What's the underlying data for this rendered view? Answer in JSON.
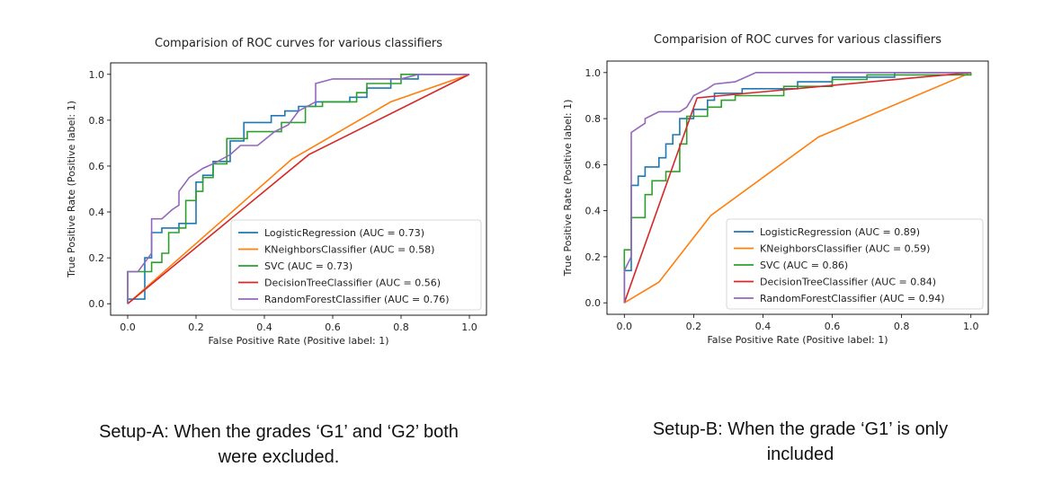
{
  "chart_data": [
    {
      "type": "line",
      "title": "Comparision of ROC curves for various classifiers",
      "xlabel": "False Positive Rate (Positive label: 1)",
      "ylabel": "True Positive Rate (Positive label: 1)",
      "xlim": [
        -0.05,
        1.05
      ],
      "ylim": [
        -0.05,
        1.05
      ],
      "xticks": [
        "0.0",
        "0.2",
        "0.4",
        "0.6",
        "0.8",
        "1.0"
      ],
      "yticks": [
        "0.0",
        "0.2",
        "0.4",
        "0.6",
        "0.8",
        "1.0"
      ],
      "grid": false,
      "legend_position": "lower-right",
      "series": [
        {
          "name": "LogisticRegression (AUC = 0.73)",
          "color": "#1f77b4",
          "step": true,
          "points": [
            [
              0,
              0
            ],
            [
              0,
              0.02
            ],
            [
              0.05,
              0.02
            ],
            [
              0.05,
              0.2
            ],
            [
              0.07,
              0.2
            ],
            [
              0.07,
              0.31
            ],
            [
              0.1,
              0.31
            ],
            [
              0.1,
              0.33
            ],
            [
              0.15,
              0.33
            ],
            [
              0.15,
              0.35
            ],
            [
              0.2,
              0.35
            ],
            [
              0.2,
              0.53
            ],
            [
              0.22,
              0.53
            ],
            [
              0.22,
              0.56
            ],
            [
              0.25,
              0.56
            ],
            [
              0.25,
              0.62
            ],
            [
              0.3,
              0.62
            ],
            [
              0.3,
              0.71
            ],
            [
              0.34,
              0.71
            ],
            [
              0.34,
              0.79
            ],
            [
              0.42,
              0.79
            ],
            [
              0.42,
              0.82
            ],
            [
              0.46,
              0.82
            ],
            [
              0.46,
              0.84
            ],
            [
              0.5,
              0.84
            ],
            [
              0.5,
              0.86
            ],
            [
              0.55,
              0.86
            ],
            [
              0.55,
              0.88
            ],
            [
              0.65,
              0.88
            ],
            [
              0.65,
              0.9
            ],
            [
              0.7,
              0.9
            ],
            [
              0.7,
              0.94
            ],
            [
              0.77,
              0.94
            ],
            [
              0.77,
              0.98
            ],
            [
              0.85,
              0.98
            ],
            [
              0.85,
              1.0
            ],
            [
              1.0,
              1.0
            ]
          ]
        },
        {
          "name": "KNeighborsClassifier (AUC = 0.58)",
          "color": "#ff7f0e",
          "step": false,
          "points": [
            [
              0,
              0
            ],
            [
              0.48,
              0.63
            ],
            [
              0.77,
              0.88
            ],
            [
              1.0,
              1.0
            ]
          ]
        },
        {
          "name": "SVC (AUC = 0.73)",
          "color": "#2ca02c",
          "step": true,
          "points": [
            [
              0,
              0
            ],
            [
              0,
              0.14
            ],
            [
              0.07,
              0.14
            ],
            [
              0.07,
              0.18
            ],
            [
              0.1,
              0.18
            ],
            [
              0.1,
              0.22
            ],
            [
              0.12,
              0.22
            ],
            [
              0.12,
              0.31
            ],
            [
              0.15,
              0.31
            ],
            [
              0.15,
              0.33
            ],
            [
              0.17,
              0.33
            ],
            [
              0.17,
              0.45
            ],
            [
              0.2,
              0.45
            ],
            [
              0.2,
              0.49
            ],
            [
              0.22,
              0.49
            ],
            [
              0.22,
              0.55
            ],
            [
              0.25,
              0.55
            ],
            [
              0.25,
              0.61
            ],
            [
              0.29,
              0.61
            ],
            [
              0.29,
              0.72
            ],
            [
              0.35,
              0.72
            ],
            [
              0.35,
              0.75
            ],
            [
              0.45,
              0.75
            ],
            [
              0.45,
              0.79
            ],
            [
              0.52,
              0.79
            ],
            [
              0.52,
              0.86
            ],
            [
              0.57,
              0.86
            ],
            [
              0.57,
              0.88
            ],
            [
              0.67,
              0.88
            ],
            [
              0.67,
              0.92
            ],
            [
              0.7,
              0.92
            ],
            [
              0.7,
              0.96
            ],
            [
              0.8,
              0.96
            ],
            [
              0.8,
              1.0
            ],
            [
              1.0,
              1.0
            ]
          ]
        },
        {
          "name": "DecisionTreeClassifier (AUC = 0.56)",
          "color": "#d62728",
          "step": false,
          "points": [
            [
              0,
              0
            ],
            [
              0.53,
              0.65
            ],
            [
              1.0,
              1.0
            ]
          ]
        },
        {
          "name": "RandomForestClassifier (AUC = 0.76)",
          "color": "#9467bd",
          "step": false,
          "points": [
            [
              0,
              0
            ],
            [
              0,
              0.14
            ],
            [
              0.03,
              0.14
            ],
            [
              0.05,
              0.18
            ],
            [
              0.07,
              0.22
            ],
            [
              0.07,
              0.37
            ],
            [
              0.1,
              0.37
            ],
            [
              0.13,
              0.41
            ],
            [
              0.15,
              0.43
            ],
            [
              0.15,
              0.49
            ],
            [
              0.18,
              0.55
            ],
            [
              0.22,
              0.59
            ],
            [
              0.25,
              0.61
            ],
            [
              0.3,
              0.65
            ],
            [
              0.33,
              0.69
            ],
            [
              0.38,
              0.69
            ],
            [
              0.43,
              0.75
            ],
            [
              0.47,
              0.78
            ],
            [
              0.5,
              0.84
            ],
            [
              0.55,
              0.88
            ],
            [
              0.55,
              0.96
            ],
            [
              0.6,
              0.98
            ],
            [
              0.8,
              0.98
            ],
            [
              0.85,
              1.0
            ],
            [
              1.0,
              1.0
            ]
          ]
        }
      ]
    },
    {
      "type": "line",
      "title": "Comparision of ROC curves for various classifiers",
      "xlabel": "False Positive Rate (Positive label: 1)",
      "ylabel": "True Positive Rate (Positive label: 1)",
      "xlim": [
        -0.05,
        1.05
      ],
      "ylim": [
        -0.05,
        1.05
      ],
      "xticks": [
        "0.0",
        "0.2",
        "0.4",
        "0.6",
        "0.8",
        "1.0"
      ],
      "yticks": [
        "0.0",
        "0.2",
        "0.4",
        "0.6",
        "0.8",
        "1.0"
      ],
      "grid": false,
      "legend_position": "lower-right",
      "series": [
        {
          "name": "LogisticRegression (AUC = 0.89)",
          "color": "#1f77b4",
          "step": true,
          "points": [
            [
              0,
              0
            ],
            [
              0,
              0.14
            ],
            [
              0.02,
              0.14
            ],
            [
              0.02,
              0.51
            ],
            [
              0.04,
              0.51
            ],
            [
              0.04,
              0.55
            ],
            [
              0.06,
              0.55
            ],
            [
              0.06,
              0.59
            ],
            [
              0.1,
              0.59
            ],
            [
              0.1,
              0.63
            ],
            [
              0.12,
              0.63
            ],
            [
              0.12,
              0.69
            ],
            [
              0.14,
              0.69
            ],
            [
              0.14,
              0.73
            ],
            [
              0.16,
              0.73
            ],
            [
              0.16,
              0.8
            ],
            [
              0.2,
              0.8
            ],
            [
              0.2,
              0.84
            ],
            [
              0.24,
              0.84
            ],
            [
              0.24,
              0.88
            ],
            [
              0.26,
              0.88
            ],
            [
              0.26,
              0.91
            ],
            [
              0.34,
              0.91
            ],
            [
              0.34,
              0.93
            ],
            [
              0.5,
              0.93
            ],
            [
              0.5,
              0.96
            ],
            [
              0.6,
              0.96
            ],
            [
              0.6,
              0.98
            ],
            [
              0.78,
              0.98
            ],
            [
              0.78,
              1.0
            ],
            [
              1.0,
              1.0
            ]
          ]
        },
        {
          "name": "KNeighborsClassifier (AUC = 0.59)",
          "color": "#ff7f0e",
          "step": false,
          "points": [
            [
              0,
              0
            ],
            [
              0.1,
              0.09
            ],
            [
              0.25,
              0.38
            ],
            [
              0.56,
              0.72
            ],
            [
              1.0,
              1.0
            ]
          ]
        },
        {
          "name": "SVC (AUC = 0.86)",
          "color": "#2ca02c",
          "step": true,
          "points": [
            [
              0,
              0
            ],
            [
              0,
              0.23
            ],
            [
              0.02,
              0.23
            ],
            [
              0.02,
              0.37
            ],
            [
              0.06,
              0.37
            ],
            [
              0.06,
              0.47
            ],
            [
              0.08,
              0.47
            ],
            [
              0.08,
              0.53
            ],
            [
              0.12,
              0.53
            ],
            [
              0.12,
              0.57
            ],
            [
              0.16,
              0.57
            ],
            [
              0.16,
              0.69
            ],
            [
              0.18,
              0.69
            ],
            [
              0.18,
              0.81
            ],
            [
              0.24,
              0.81
            ],
            [
              0.24,
              0.85
            ],
            [
              0.28,
              0.85
            ],
            [
              0.28,
              0.88
            ],
            [
              0.32,
              0.88
            ],
            [
              0.32,
              0.9
            ],
            [
              0.46,
              0.9
            ],
            [
              0.46,
              0.94
            ],
            [
              0.6,
              0.94
            ],
            [
              0.6,
              0.97
            ],
            [
              0.7,
              0.97
            ],
            [
              0.7,
              0.99
            ],
            [
              1.0,
              0.99
            ],
            [
              1.0,
              1.0
            ]
          ]
        },
        {
          "name": "DecisionTreeClassifier (AUC = 0.84)",
          "color": "#d62728",
          "step": false,
          "points": [
            [
              0,
              0
            ],
            [
              0.21,
              0.89
            ],
            [
              1.0,
              1.0
            ]
          ]
        },
        {
          "name": "RandomForestClassifier (AUC = 0.94)",
          "color": "#9467bd",
          "step": false,
          "points": [
            [
              0,
              0
            ],
            [
              0,
              0.14
            ],
            [
              0.02,
              0.2
            ],
            [
              0.02,
              0.74
            ],
            [
              0.04,
              0.76
            ],
            [
              0.06,
              0.78
            ],
            [
              0.06,
              0.8
            ],
            [
              0.1,
              0.83
            ],
            [
              0.16,
              0.83
            ],
            [
              0.18,
              0.85
            ],
            [
              0.2,
              0.9
            ],
            [
              0.24,
              0.93
            ],
            [
              0.26,
              0.95
            ],
            [
              0.32,
              0.96
            ],
            [
              0.38,
              1.0
            ],
            [
              1.0,
              1.0
            ]
          ]
        }
      ]
    }
  ],
  "captions": [
    {
      "line1": "Setup-A: When the grades ‘G1’ and ‘G2’ both",
      "line2": "were excluded."
    },
    {
      "line1": "Setup-B: When the grade ‘G1’ is only",
      "line2": "included"
    }
  ]
}
